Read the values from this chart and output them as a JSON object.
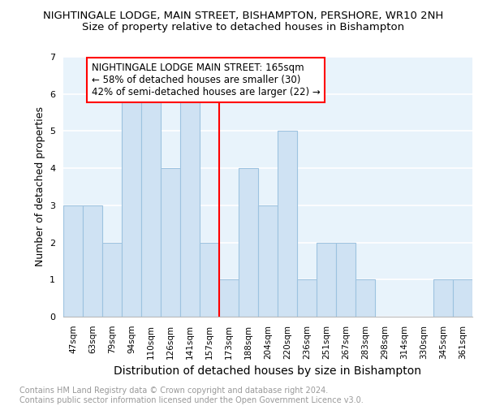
{
  "title": "NIGHTINGALE LODGE, MAIN STREET, BISHAMPTON, PERSHORE, WR10 2NH",
  "subtitle": "Size of property relative to detached houses in Bishampton",
  "xlabel": "Distribution of detached houses by size in Bishampton",
  "ylabel": "Number of detached properties",
  "categories": [
    "47sqm",
    "63sqm",
    "79sqm",
    "94sqm",
    "110sqm",
    "126sqm",
    "141sqm",
    "157sqm",
    "173sqm",
    "188sqm",
    "204sqm",
    "220sqm",
    "236sqm",
    "251sqm",
    "267sqm",
    "283sqm",
    "298sqm",
    "314sqm",
    "330sqm",
    "345sqm",
    "361sqm"
  ],
  "values": [
    3,
    3,
    2,
    6,
    6,
    4,
    6,
    2,
    1,
    4,
    3,
    5,
    1,
    2,
    2,
    1,
    0,
    0,
    0,
    1,
    1
  ],
  "bar_color": "#cfe2f3",
  "bar_edge_color": "#9dc3e0",
  "background_color": "#e8f3fb",
  "grid_color": "#ffffff",
  "ylim": [
    0,
    7
  ],
  "yticks": [
    0,
    1,
    2,
    3,
    4,
    5,
    6,
    7
  ],
  "property_line_x": 7.5,
  "annotation_box_text": "NIGHTINGALE LODGE MAIN STREET: 165sqm\n← 58% of detached houses are smaller (30)\n42% of semi-detached houses are larger (22) →",
  "footer_line1": "Contains HM Land Registry data © Crown copyright and database right 2024.",
  "footer_line2": "Contains public sector information licensed under the Open Government Licence v3.0.",
  "title_fontsize": 9.5,
  "subtitle_fontsize": 9.5,
  "xlabel_fontsize": 10,
  "ylabel_fontsize": 9,
  "tick_fontsize": 7.5,
  "annotation_fontsize": 8.5,
  "footer_fontsize": 7
}
